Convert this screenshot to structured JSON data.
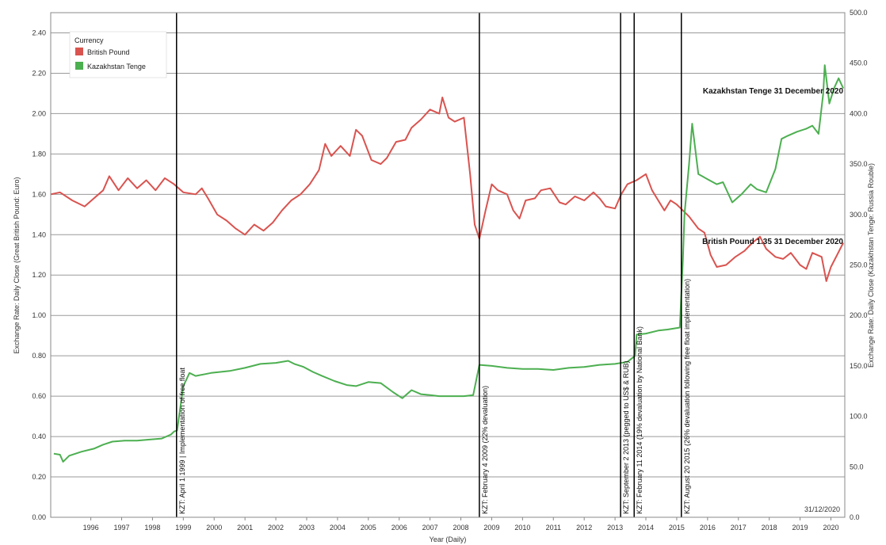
{
  "chart_data": {
    "type": "line",
    "title": "",
    "xlabel": "Year (Daily)",
    "ylabel_left": "Exchange Rate: Daily Close (Great British Pound: Euro)",
    "ylabel_right": "Exchange Rate: Daily Close (Kazakhstan Tenge: Russia Rouble)",
    "x_range": [
      1995.2,
      2020.95
    ],
    "x_ticks": [
      "1996",
      "1997",
      "1998",
      "1999",
      "2000",
      "2001",
      "2002",
      "2003",
      "2004",
      "2005",
      "2006",
      "2007",
      "2008",
      "2009",
      "2010",
      "2011",
      "2012",
      "2013",
      "2014",
      "2015",
      "2016",
      "2017",
      "2018",
      "2019",
      "2020"
    ],
    "ylim_left": [
      0,
      2.5
    ],
    "y_ticks_left": [
      "0.00",
      "0.20",
      "0.40",
      "0.60",
      "0.80",
      "1.00",
      "1.20",
      "1.40",
      "1.60",
      "1.80",
      "2.00",
      "2.20",
      "2.40"
    ],
    "ylim_right": [
      0,
      500
    ],
    "y_ticks_right": [
      "0.0",
      "50.0",
      "100.0",
      "150.0",
      "200.0",
      "250.0",
      "300.0",
      "350.0",
      "400.0",
      "450.0",
      "500.0"
    ],
    "grid": true,
    "legend_position": "top-left",
    "legend_title": "Currency",
    "date_stamp": "31/12/2020",
    "series": [
      {
        "name": "British Pound",
        "color": "#d9534f",
        "axis": "left",
        "points": [
          [
            1995.2,
            1.6
          ],
          [
            1995.5,
            1.61
          ],
          [
            1995.9,
            1.57
          ],
          [
            1996.3,
            1.54
          ],
          [
            1996.6,
            1.58
          ],
          [
            1996.9,
            1.62
          ],
          [
            1997.1,
            1.69
          ],
          [
            1997.4,
            1.62
          ],
          [
            1997.7,
            1.68
          ],
          [
            1998.0,
            1.63
          ],
          [
            1998.3,
            1.67
          ],
          [
            1998.6,
            1.62
          ],
          [
            1998.9,
            1.68
          ],
          [
            1999.2,
            1.65
          ],
          [
            1999.5,
            1.61
          ],
          [
            1999.9,
            1.6
          ],
          [
            2000.1,
            1.63
          ],
          [
            2000.3,
            1.58
          ],
          [
            2000.6,
            1.5
          ],
          [
            2000.9,
            1.47
          ],
          [
            2001.2,
            1.43
          ],
          [
            2001.5,
            1.4
          ],
          [
            2001.8,
            1.45
          ],
          [
            2002.1,
            1.42
          ],
          [
            2002.4,
            1.46
          ],
          [
            2002.7,
            1.52
          ],
          [
            2003.0,
            1.57
          ],
          [
            2003.3,
            1.6
          ],
          [
            2003.6,
            1.65
          ],
          [
            2003.9,
            1.72
          ],
          [
            2004.1,
            1.85
          ],
          [
            2004.3,
            1.79
          ],
          [
            2004.6,
            1.84
          ],
          [
            2004.9,
            1.79
          ],
          [
            2005.1,
            1.92
          ],
          [
            2005.3,
            1.89
          ],
          [
            2005.6,
            1.77
          ],
          [
            2005.9,
            1.75
          ],
          [
            2006.1,
            1.78
          ],
          [
            2006.4,
            1.86
          ],
          [
            2006.7,
            1.87
          ],
          [
            2006.9,
            1.93
          ],
          [
            2007.2,
            1.97
          ],
          [
            2007.5,
            2.02
          ],
          [
            2007.8,
            2.0
          ],
          [
            2007.9,
            2.08
          ],
          [
            2008.1,
            1.98
          ],
          [
            2008.3,
            1.96
          ],
          [
            2008.6,
            1.98
          ],
          [
            2008.8,
            1.7
          ],
          [
            2008.95,
            1.45
          ],
          [
            2009.1,
            1.38
          ],
          [
            2009.3,
            1.52
          ],
          [
            2009.5,
            1.65
          ],
          [
            2009.7,
            1.62
          ],
          [
            2010.0,
            1.6
          ],
          [
            2010.2,
            1.52
          ],
          [
            2010.4,
            1.48
          ],
          [
            2010.6,
            1.57
          ],
          [
            2010.9,
            1.58
          ],
          [
            2011.1,
            1.62
          ],
          [
            2011.4,
            1.63
          ],
          [
            2011.7,
            1.56
          ],
          [
            2011.9,
            1.55
          ],
          [
            2012.2,
            1.59
          ],
          [
            2012.5,
            1.57
          ],
          [
            2012.8,
            1.61
          ],
          [
            2013.0,
            1.58
          ],
          [
            2013.2,
            1.54
          ],
          [
            2013.5,
            1.53
          ],
          [
            2013.7,
            1.6
          ],
          [
            2013.9,
            1.65
          ],
          [
            2014.2,
            1.67
          ],
          [
            2014.5,
            1.7
          ],
          [
            2014.7,
            1.62
          ],
          [
            2014.9,
            1.57
          ],
          [
            2015.1,
            1.52
          ],
          [
            2015.3,
            1.57
          ],
          [
            2015.5,
            1.55
          ],
          [
            2015.7,
            1.52
          ],
          [
            2015.9,
            1.49
          ],
          [
            2016.2,
            1.43
          ],
          [
            2016.4,
            1.41
          ],
          [
            2016.6,
            1.3
          ],
          [
            2016.8,
            1.24
          ],
          [
            2017.1,
            1.25
          ],
          [
            2017.4,
            1.29
          ],
          [
            2017.7,
            1.32
          ],
          [
            2017.95,
            1.36
          ],
          [
            2018.2,
            1.39
          ],
          [
            2018.4,
            1.33
          ],
          [
            2018.7,
            1.29
          ],
          [
            2018.95,
            1.28
          ],
          [
            2019.2,
            1.31
          ],
          [
            2019.5,
            1.25
          ],
          [
            2019.7,
            1.23
          ],
          [
            2019.9,
            1.31
          ],
          [
            2020.2,
            1.29
          ],
          [
            2020.35,
            1.17
          ],
          [
            2020.5,
            1.24
          ],
          [
            2020.7,
            1.3
          ],
          [
            2020.9,
            1.36
          ]
        ]
      },
      {
        "name": "Kazakhstan Tenge",
        "color": "#4caf50",
        "axis": "right",
        "points": [
          [
            1995.3,
            63
          ],
          [
            1995.5,
            62
          ],
          [
            1995.6,
            55
          ],
          [
            1995.8,
            61
          ],
          [
            1996.2,
            65
          ],
          [
            1996.6,
            68
          ],
          [
            1996.9,
            72
          ],
          [
            1997.2,
            75
          ],
          [
            1997.6,
            76
          ],
          [
            1998.0,
            76
          ],
          [
            1998.4,
            77
          ],
          [
            1998.8,
            78
          ],
          [
            1999.1,
            82
          ],
          [
            1999.2,
            85
          ],
          [
            1999.3,
            86
          ],
          [
            1999.5,
            130
          ],
          [
            1999.7,
            143
          ],
          [
            1999.9,
            140
          ],
          [
            2000.4,
            143
          ],
          [
            2001.0,
            145
          ],
          [
            2001.5,
            148
          ],
          [
            2002.0,
            152
          ],
          [
            2002.5,
            153
          ],
          [
            2002.9,
            155
          ],
          [
            2003.1,
            152
          ],
          [
            2003.4,
            149
          ],
          [
            2003.7,
            144
          ],
          [
            2004.0,
            140
          ],
          [
            2004.4,
            135
          ],
          [
            2004.8,
            131
          ],
          [
            2005.1,
            130
          ],
          [
            2005.5,
            134
          ],
          [
            2005.9,
            133
          ],
          [
            2006.3,
            124
          ],
          [
            2006.6,
            118
          ],
          [
            2006.9,
            126
          ],
          [
            2007.2,
            122
          ],
          [
            2007.5,
            121
          ],
          [
            2007.8,
            120
          ],
          [
            2008.2,
            120
          ],
          [
            2008.6,
            120
          ],
          [
            2008.9,
            121
          ],
          [
            2009.1,
            151
          ],
          [
            2009.5,
            150
          ],
          [
            2010.0,
            148
          ],
          [
            2010.5,
            147
          ],
          [
            2011.0,
            147
          ],
          [
            2011.5,
            146
          ],
          [
            2012.0,
            148
          ],
          [
            2012.5,
            149
          ],
          [
            2013.0,
            151
          ],
          [
            2013.5,
            152
          ],
          [
            2013.9,
            154
          ],
          [
            2014.15,
            160
          ],
          [
            2014.2,
            181
          ],
          [
            2014.5,
            182
          ],
          [
            2014.9,
            185
          ],
          [
            2015.2,
            186
          ],
          [
            2015.6,
            188
          ],
          [
            2015.7,
            255
          ],
          [
            2015.75,
            300
          ],
          [
            2015.9,
            350
          ],
          [
            2016.0,
            390
          ],
          [
            2016.2,
            340
          ],
          [
            2016.5,
            335
          ],
          [
            2016.8,
            330
          ],
          [
            2017.0,
            332
          ],
          [
            2017.3,
            312
          ],
          [
            2017.6,
            320
          ],
          [
            2017.9,
            330
          ],
          [
            2018.1,
            325
          ],
          [
            2018.4,
            322
          ],
          [
            2018.7,
            345
          ],
          [
            2018.9,
            375
          ],
          [
            2019.1,
            378
          ],
          [
            2019.4,
            382
          ],
          [
            2019.7,
            385
          ],
          [
            2019.9,
            388
          ],
          [
            2020.1,
            380
          ],
          [
            2020.25,
            420
          ],
          [
            2020.3,
            448
          ],
          [
            2020.45,
            410
          ],
          [
            2020.6,
            425
          ],
          [
            2020.75,
            435
          ],
          [
            2020.9,
            425
          ]
        ]
      }
    ],
    "vertical_markers": [
      {
        "x": 1999.28,
        "label": "KZT: April 1 1999 | Implementation of free float"
      },
      {
        "x": 2009.1,
        "label": "KZT: February 4 2009 (22% devaluation)"
      },
      {
        "x": 2013.68,
        "label": "KZT: September 2 2013 (pegged to US$ & RUB)"
      },
      {
        "x": 2014.12,
        "label": "KZT: February 11 2014 (19% devaluation by National Bank)"
      },
      {
        "x": 2015.65,
        "label": "KZT: August 20 2015 (26% devaluation following free float implementation)"
      }
    ],
    "end_labels": [
      {
        "series": "Kazakhstan Tenge",
        "text": "Kazakhstan Tenge 31 December 2020"
      },
      {
        "series": "British Pound",
        "text": "British Pound 1.35 31 December 2020"
      }
    ]
  }
}
